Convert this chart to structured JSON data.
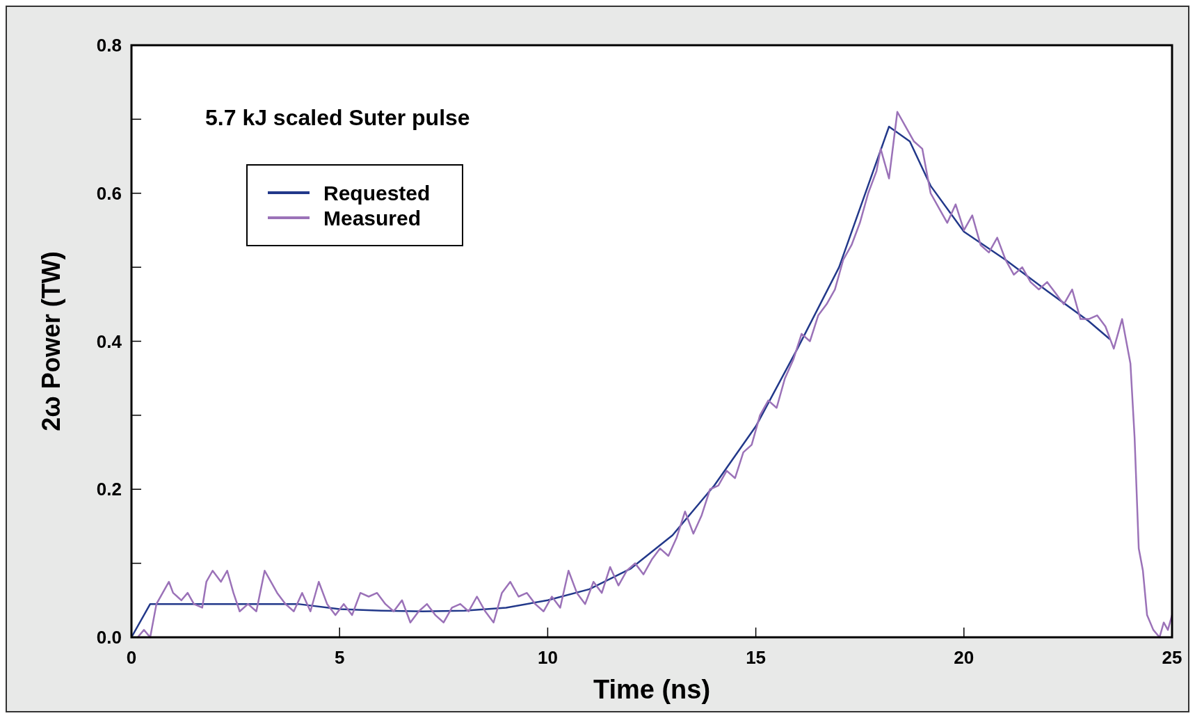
{
  "chart_data": {
    "type": "line",
    "title": "5.7 kJ scaled Suter pulse",
    "xlabel": "Time (ns)",
    "ylabel": "2ω Power (TW)",
    "xlim": [
      0,
      25
    ],
    "xticks": [
      0,
      5,
      10,
      15,
      20,
      25
    ],
    "ylim": [
      0,
      0.8
    ],
    "yticks": [
      {
        "value": 0,
        "label": "0.0"
      },
      {
        "value": 0.1,
        "label": null
      },
      0.2,
      {
        "value": 0.3,
        "label": null
      },
      0.4,
      {
        "value": 0.5,
        "label": null
      },
      0.6,
      {
        "value": 0.7,
        "label": null
      },
      0.8
    ],
    "grid": false,
    "legend": "top left",
    "series": [
      {
        "name": "Requested",
        "color": "#22388a",
        "x": [
          0,
          0.45,
          4,
          5,
          6,
          7,
          8,
          9,
          10,
          11,
          12,
          13,
          14,
          15,
          16,
          17,
          18.2,
          18.7,
          19.2,
          20,
          21,
          22,
          23,
          23.5
        ],
        "values": [
          0,
          0.045,
          0.045,
          0.038,
          0.036,
          0.035,
          0.036,
          0.04,
          0.05,
          0.065,
          0.093,
          0.138,
          0.205,
          0.285,
          0.39,
          0.5,
          0.69,
          0.67,
          0.61,
          0.548,
          0.51,
          0.468,
          0.427,
          0.403
        ]
      },
      {
        "name": "Measured",
        "color": "#9b72b8",
        "x": [
          0.15,
          0.3,
          0.45,
          0.6,
          0.75,
          0.9,
          1.0,
          1.2,
          1.35,
          1.5,
          1.7,
          1.8,
          1.95,
          2.15,
          2.3,
          2.45,
          2.6,
          2.8,
          3.0,
          3.2,
          3.35,
          3.5,
          3.7,
          3.9,
          4.1,
          4.3,
          4.5,
          4.7,
          4.9,
          5.1,
          5.3,
          5.5,
          5.7,
          5.9,
          6.1,
          6.3,
          6.5,
          6.7,
          6.9,
          7.1,
          7.3,
          7.5,
          7.7,
          7.9,
          8.1,
          8.3,
          8.5,
          8.7,
          8.9,
          9.1,
          9.3,
          9.5,
          9.7,
          9.9,
          10.1,
          10.3,
          10.5,
          10.7,
          10.9,
          11.1,
          11.3,
          11.5,
          11.7,
          11.9,
          12.1,
          12.3,
          12.5,
          12.7,
          12.9,
          13.1,
          13.3,
          13.5,
          13.7,
          13.9,
          14.1,
          14.3,
          14.5,
          14.7,
          14.9,
          15.1,
          15.3,
          15.5,
          15.7,
          15.9,
          16.1,
          16.3,
          16.5,
          16.7,
          16.9,
          17.1,
          17.3,
          17.5,
          17.7,
          17.9,
          18.0,
          18.2,
          18.4,
          18.6,
          18.8,
          19.0,
          19.2,
          19.4,
          19.6,
          19.8,
          20.0,
          20.2,
          20.4,
          20.6,
          20.8,
          21.0,
          21.2,
          21.4,
          21.6,
          21.8,
          22.0,
          22.2,
          22.4,
          22.6,
          22.8,
          23.0,
          23.2,
          23.4,
          23.6,
          23.8,
          24.0,
          24.1,
          24.2,
          24.3,
          24.4,
          24.55,
          24.7,
          24.8,
          24.9,
          25.0
        ],
        "values": [
          0,
          0.01,
          0,
          0.045,
          0.06,
          0.075,
          0.06,
          0.05,
          0.06,
          0.045,
          0.04,
          0.075,
          0.09,
          0.075,
          0.09,
          0.06,
          0.035,
          0.045,
          0.035,
          0.09,
          0.075,
          0.06,
          0.045,
          0.035,
          0.06,
          0.035,
          0.075,
          0.045,
          0.03,
          0.045,
          0.03,
          0.06,
          0.055,
          0.06,
          0.045,
          0.035,
          0.05,
          0.02,
          0.035,
          0.045,
          0.03,
          0.02,
          0.04,
          0.045,
          0.035,
          0.055,
          0.035,
          0.02,
          0.06,
          0.075,
          0.055,
          0.06,
          0.045,
          0.035,
          0.055,
          0.04,
          0.09,
          0.06,
          0.045,
          0.075,
          0.06,
          0.095,
          0.07,
          0.09,
          0.1,
          0.085,
          0.105,
          0.12,
          0.11,
          0.135,
          0.17,
          0.14,
          0.165,
          0.2,
          0.205,
          0.225,
          0.215,
          0.25,
          0.26,
          0.3,
          0.32,
          0.31,
          0.35,
          0.375,
          0.41,
          0.4,
          0.435,
          0.45,
          0.47,
          0.51,
          0.53,
          0.56,
          0.6,
          0.63,
          0.66,
          0.62,
          0.71,
          0.69,
          0.67,
          0.66,
          0.6,
          0.58,
          0.56,
          0.585,
          0.55,
          0.57,
          0.53,
          0.52,
          0.54,
          0.51,
          0.49,
          0.5,
          0.48,
          0.47,
          0.48,
          0.465,
          0.45,
          0.47,
          0.43,
          0.43,
          0.435,
          0.42,
          0.39,
          0.43,
          0.37,
          0.27,
          0.12,
          0.09,
          0.03,
          0.01,
          0,
          0.02,
          0.01,
          0.03
        ]
      }
    ]
  }
}
